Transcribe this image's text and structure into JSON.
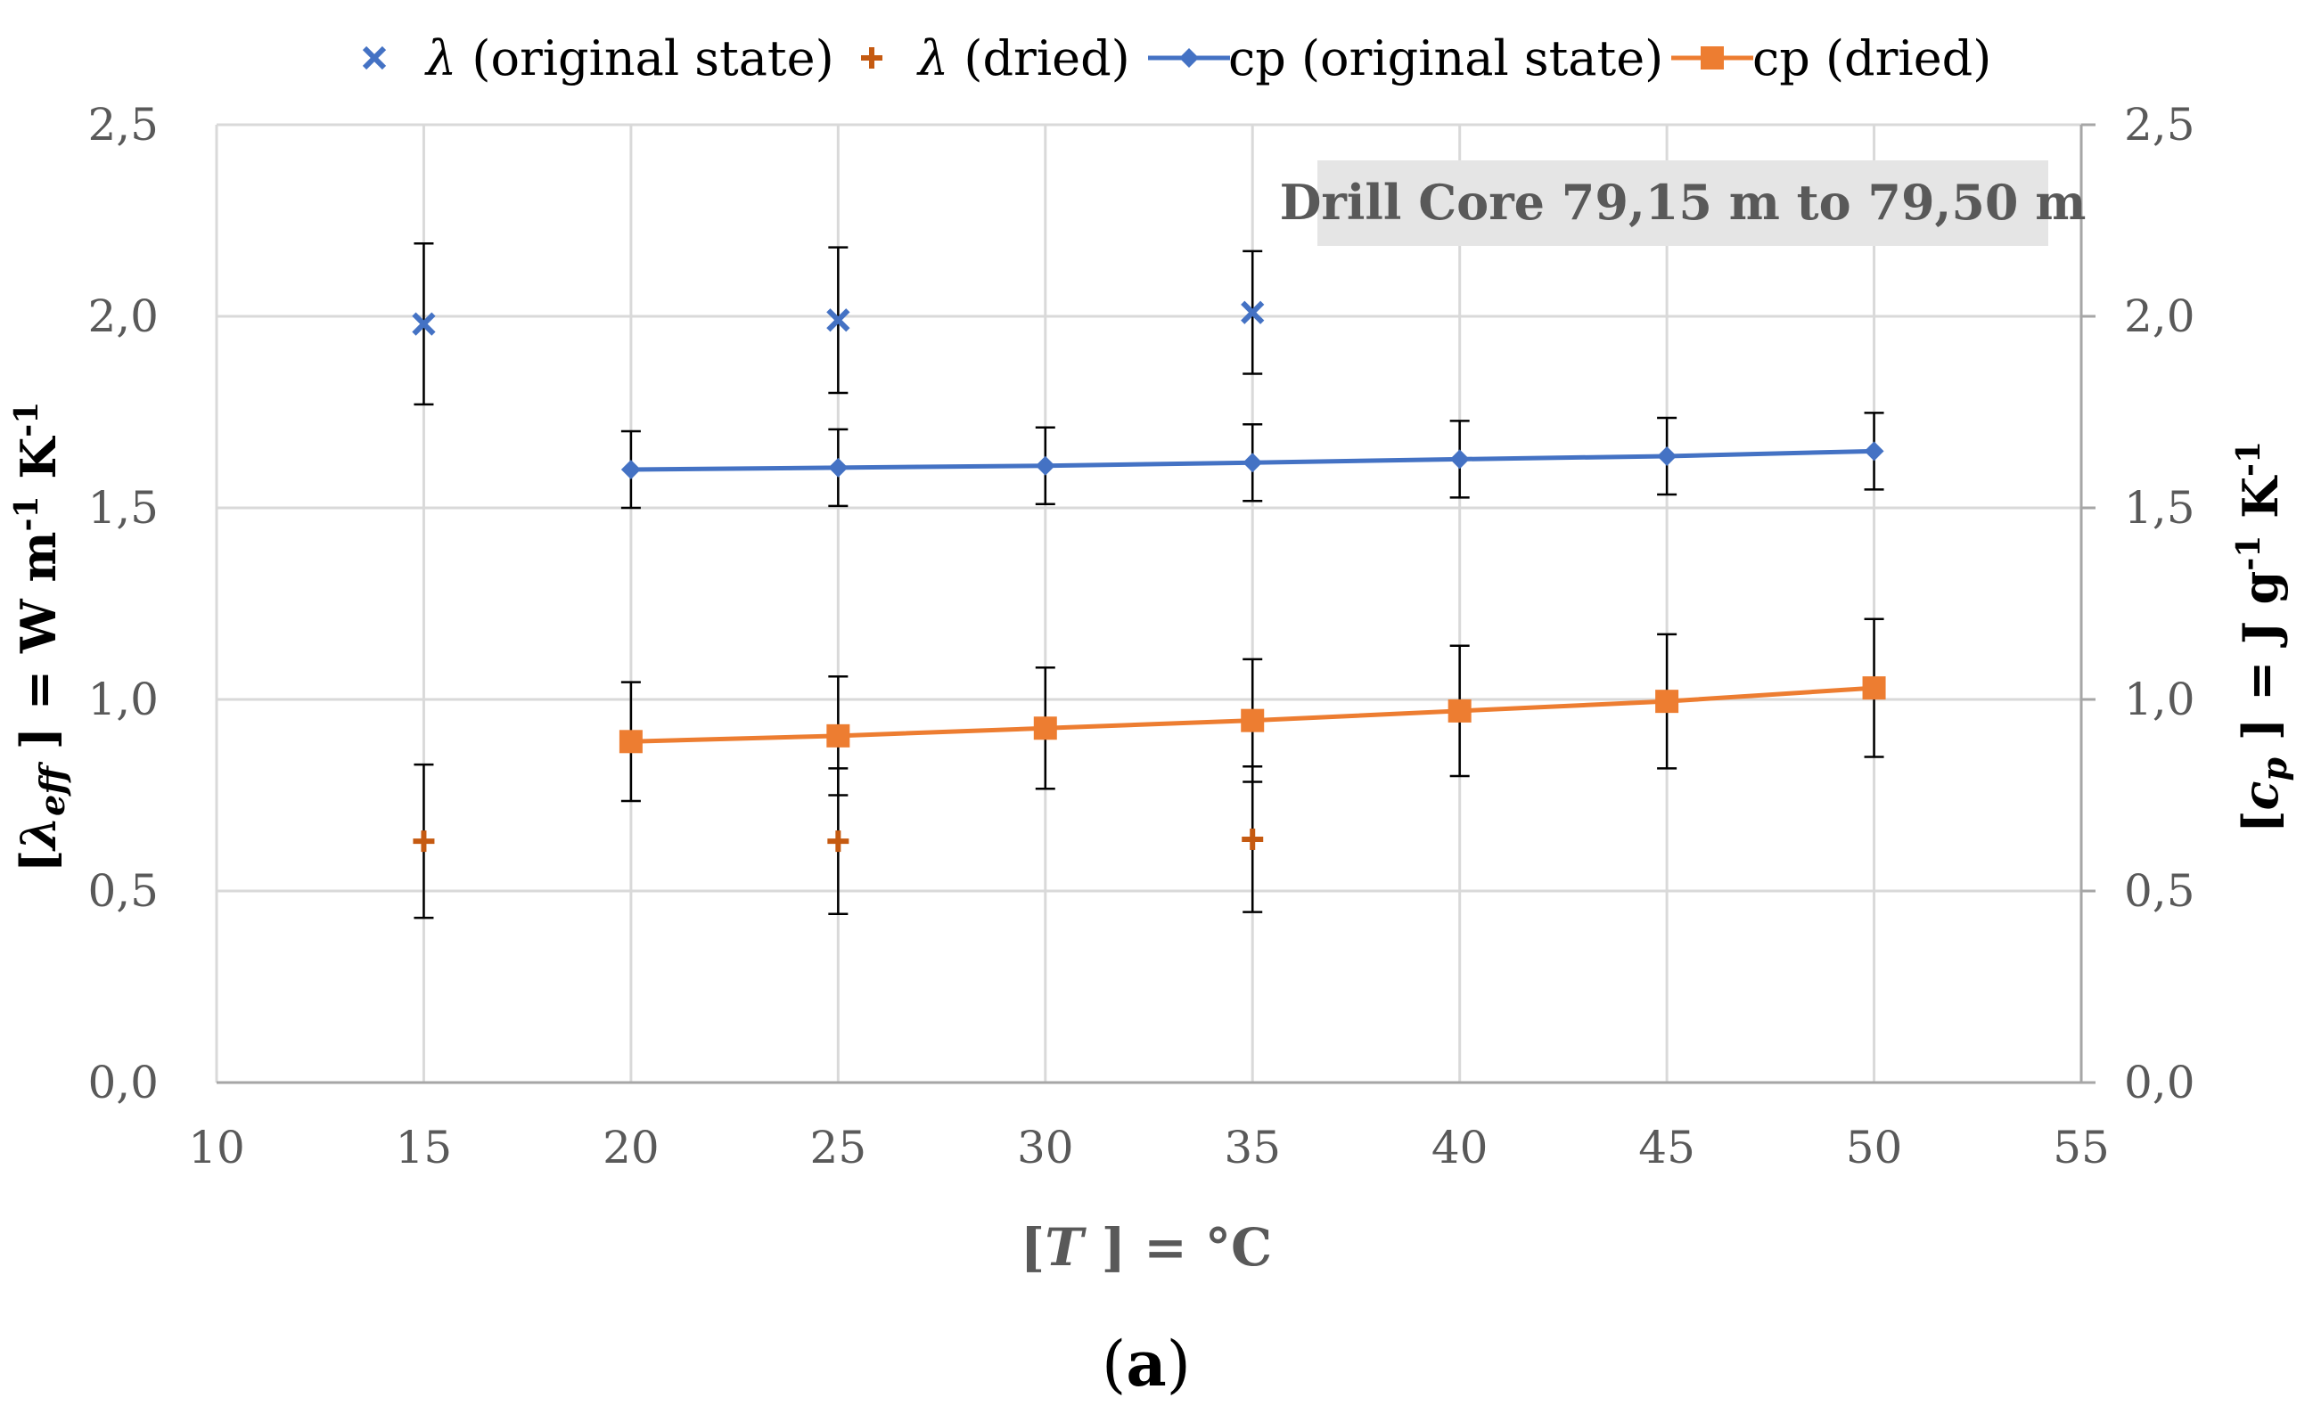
{
  "chart_data": {
    "type": "scatter",
    "annotation": "Drill Core 79,15 m to 79,50 m",
    "caption_letter": "a",
    "xlabel_T": "T",
    "xlabel_unit": " ] = °C",
    "ylabel_left_lambda": "λ",
    "ylabel_left_sub": "eff",
    "ylabel_left_unit": " ] = W m",
    "ylabel_right_c": "c",
    "ylabel_right_sub": "p",
    "ylabel_right_unit": " ] = J g",
    "x_ticks": [
      "10",
      "15",
      "20",
      "25",
      "30",
      "35",
      "40",
      "45",
      "50",
      "55"
    ],
    "y_ticks_left": [
      "0,0",
      "0,5",
      "1,0",
      "1,5",
      "2,0",
      "2,5"
    ],
    "y_ticks_right": [
      "0,0",
      "0,5",
      "1,0",
      "1,5",
      "2,0",
      "2,5"
    ],
    "xlim": [
      10,
      55
    ],
    "ylim_left": [
      0,
      2.5
    ],
    "ylim_right": [
      0,
      2.5
    ],
    "grid": true,
    "legend_position": "top",
    "series": [
      {
        "name": "(original state)",
        "symbol": "λ",
        "axis": "left",
        "marker": "x",
        "line": false,
        "color": "#4472C4",
        "x": [
          15,
          25,
          35
        ],
        "y": [
          1.98,
          1.99,
          2.01
        ],
        "err": [
          0.21,
          0.19,
          0.16
        ]
      },
      {
        "name": "(dried)",
        "symbol": "λ",
        "axis": "left",
        "marker": "plus",
        "line": false,
        "color": "#C55A11",
        "x": [
          15,
          25,
          35
        ],
        "y": [
          0.63,
          0.63,
          0.635
        ],
        "err": [
          0.2,
          0.19,
          0.19
        ]
      },
      {
        "name": "cp (original state)",
        "axis": "right",
        "marker": "diamond",
        "line": true,
        "color": "#4472C4",
        "x": [
          20,
          25,
          30,
          35,
          40,
          45,
          50
        ],
        "y": [
          1.6,
          1.605,
          1.61,
          1.618,
          1.627,
          1.635,
          1.648
        ],
        "err": [
          0.1,
          0.1,
          0.1,
          0.1,
          0.1,
          0.1,
          0.1
        ]
      },
      {
        "name": "cp (dried)",
        "axis": "right",
        "marker": "square",
        "line": true,
        "color": "#ED7D31",
        "x": [
          20,
          25,
          30,
          35,
          40,
          45,
          50
        ],
        "y": [
          0.89,
          0.905,
          0.925,
          0.945,
          0.97,
          0.995,
          1.03
        ],
        "err": [
          0.155,
          0.155,
          0.158,
          0.16,
          0.17,
          0.175,
          0.18
        ]
      }
    ]
  }
}
